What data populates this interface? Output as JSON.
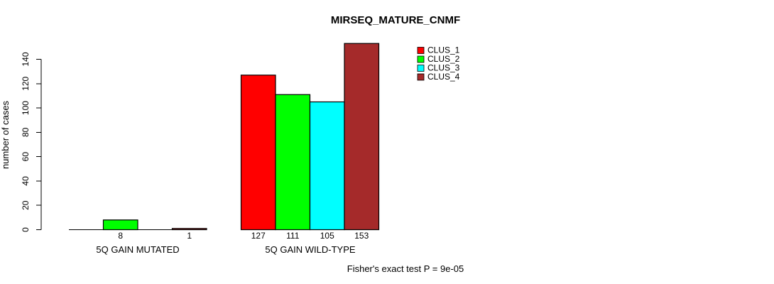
{
  "chart_data": {
    "type": "bar",
    "title": "MIRSEQ_MATURE_CNMF",
    "ylabel": "number of cases",
    "xlabel": "",
    "footnote": "Fisher's exact test P = 9e-05",
    "categories": [
      "5Q GAIN MUTATED",
      "5Q GAIN WILD-TYPE"
    ],
    "series": [
      {
        "name": "CLUS_1",
        "color": "#FF0000",
        "values": [
          0,
          127
        ]
      },
      {
        "name": "CLUS_2",
        "color": "#00FF00",
        "values": [
          8,
          111
        ]
      },
      {
        "name": "CLUS_3",
        "color": "#00FFFF",
        "values": [
          0,
          105
        ]
      },
      {
        "name": "CLUS_4",
        "color": "#A52A2A",
        "values": [
          1,
          153
        ]
      }
    ],
    "bar_value_labels": [
      "8",
      "1",
      "127",
      "111",
      "105",
      "153"
    ],
    "yticks": [
      0,
      20,
      40,
      60,
      80,
      100,
      120,
      140
    ],
    "ylim": [
      0,
      153
    ],
    "grid": false,
    "legend_position": "inside-top-right",
    "axis_color": "#000000",
    "bar_outline_color": "#000000",
    "background_color": "#FFFFFF"
  }
}
